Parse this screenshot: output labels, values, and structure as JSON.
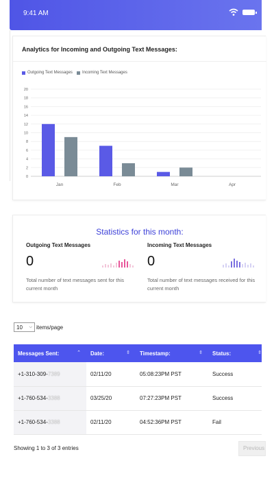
{
  "status_bar": {
    "time": "9:41 AM",
    "accent": "#4f55e6"
  },
  "chart_card": {
    "title": "Analytics for Incoming and Outgoing Text Messages:",
    "legend": [
      {
        "label": "Outgoing Text Messages",
        "color": "#5a5ae6"
      },
      {
        "label": "Incoming Text Messages",
        "color": "#7a8b96"
      }
    ]
  },
  "chart_data": {
    "type": "bar",
    "title": "Analytics for Incoming and Outgoing Text Messages:",
    "categories": [
      "Jan",
      "Feb",
      "Mar",
      "Apr"
    ],
    "series": [
      {
        "name": "Outgoing Text Messages",
        "values": [
          12,
          7,
          1,
          0
        ],
        "color": "#5a5ae6"
      },
      {
        "name": "Incoming Text Messages",
        "values": [
          9,
          3,
          2,
          0
        ],
        "color": "#7a8b96"
      }
    ],
    "ylim": [
      0,
      20
    ],
    "yticks": [
      0,
      2,
      4,
      6,
      8,
      10,
      12,
      14,
      16,
      18,
      20
    ],
    "grid": true,
    "legend_position": "top-left"
  },
  "stats": {
    "title": "Statistics for this month:",
    "outgoing": {
      "label": "Outgoing Text Messages",
      "value": "0",
      "description": "Total number of text messages sent for this current month",
      "spark_color": "#e8569a"
    },
    "incoming": {
      "label": "Incoming Text Messages",
      "value": "0",
      "description": "Total number of text messages received for this current month",
      "spark_color": "#7a6fe0"
    }
  },
  "pagination": {
    "per_page_value": "10",
    "per_page_label": "items/page",
    "showing_text": "Showing 1 to 3 of 3 entries",
    "prev_label": "Previous"
  },
  "table": {
    "headers": [
      "Messages Sent:",
      "Date:",
      "Timestamp:",
      "Status:"
    ],
    "rows": [
      {
        "phone": "+1-310-309-",
        "phone_hidden": "7389",
        "date": "02/11/20",
        "timestamp": "05:08:23PM PST",
        "status": "Success"
      },
      {
        "phone": "+1-760-534-",
        "phone_hidden": "3388",
        "date": "03/25/20",
        "timestamp": "07:27:23PM PST",
        "status": "Success"
      },
      {
        "phone": "+1-760-534-",
        "phone_hidden": "3388",
        "date": "02/11/20",
        "timestamp": "04:52:36PM PST",
        "status": "Fail"
      }
    ]
  }
}
